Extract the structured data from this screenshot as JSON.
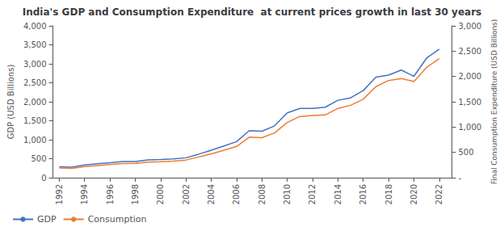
{
  "chart_data": {
    "type": "line",
    "title": "India's GDP and Consumption Expenditure  at current prices growth in last 30 years",
    "ylabel": "GDP (USD Billions)",
    "y2label": "Final Consumption Expenditure (USD Billions)",
    "x": [
      1992,
      1993,
      1994,
      1995,
      1996,
      1997,
      1998,
      1999,
      2000,
      2001,
      2002,
      2003,
      2004,
      2005,
      2006,
      2007,
      2008,
      2009,
      2010,
      2011,
      2012,
      2013,
      2014,
      2015,
      2016,
      2017,
      2018,
      2019,
      2020,
      2021,
      2022
    ],
    "xlim": [
      1991.5,
      2023.0
    ],
    "xticks": [
      1992,
      1994,
      1996,
      1998,
      2000,
      2002,
      2004,
      2006,
      2008,
      2010,
      2012,
      2014,
      2016,
      2018,
      2020,
      2022
    ],
    "ylim": [
      0,
      4000
    ],
    "yticks": [
      0,
      500,
      {
        "value": 1000,
        "label": "1,000"
      },
      {
        "value": 1500,
        "label": "1,500"
      },
      {
        "value": 2000,
        "label": "2,000"
      },
      {
        "value": 2500,
        "label": "2,500"
      },
      {
        "value": 3000,
        "label": "3,000"
      },
      {
        "value": 3500,
        "label": "3,500"
      },
      {
        "value": 4000,
        "label": "4,000"
      }
    ],
    "y2lim": [
      0,
      3000
    ],
    "y2ticks": [
      {
        "value": 0,
        "label": "-"
      },
      500,
      {
        "value": 1000,
        "label": "1,000"
      },
      {
        "value": 1500,
        "label": "1,500"
      },
      {
        "value": 2000,
        "label": "2,000"
      },
      {
        "value": 2500,
        "label": "2,500"
      },
      {
        "value": 3000,
        "label": "3,000"
      }
    ],
    "series": [
      {
        "name": "GDP",
        "color": "#4472C4",
        "values": [
          289,
          276,
          333,
          366,
          392,
          423,
          428,
          466,
          477,
          494,
          524,
          619,
          722,
          834,
          949,
          1239,
          1224,
          1365,
          1708,
          1823,
          1827,
          1857,
          2040,
          2103,
          2295,
          2651,
          2702,
          2835,
          2671,
          3150,
          3385
        ]
      },
      {
        "name": "Consumption",
        "color": "#ED7D31",
        "axis": "y2",
        "values": [
          190,
          185,
          218,
          241,
          261,
          279,
          283,
          309,
          315,
          327,
          349,
          409,
          471,
          542,
          617,
          800,
          790,
          883,
          1090,
          1210,
          1230,
          1240,
          1370,
          1430,
          1550,
          1800,
          1920,
          1960,
          1900,
          2180,
          2350
        ]
      }
    ],
    "grid": false,
    "legend": "lower left"
  }
}
